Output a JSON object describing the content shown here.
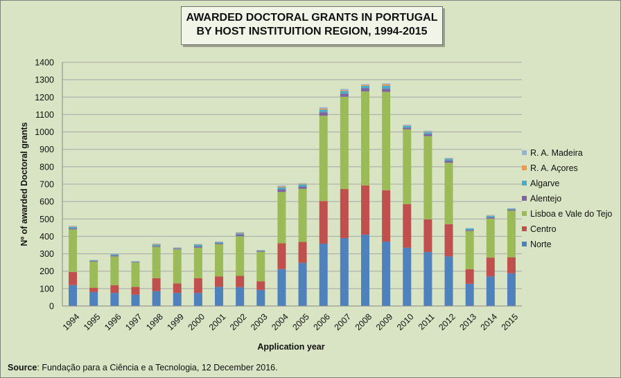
{
  "chart_data": {
    "type": "bar",
    "stacked": true,
    "title": [
      "AWARDED DOCTORAL GRANTS IN PORTUGAL",
      "BY HOST INSTITUITION REGION, 1994-2015"
    ],
    "xlabel": "Application year",
    "ylabel": "Nº of awarded Doctoral grants",
    "ylim": [
      0,
      1400
    ],
    "yticks": [
      0,
      100,
      200,
      300,
      400,
      500,
      600,
      700,
      800,
      900,
      1000,
      1100,
      1200,
      1300,
      1400
    ],
    "grid": true,
    "legend_position": "right",
    "categories": [
      "1994",
      "1995",
      "1996",
      "1997",
      "1998",
      "1999",
      "2000",
      "2001",
      "2002",
      "2003",
      "2004",
      "2005",
      "2006",
      "2007",
      "2008",
      "2009",
      "2010",
      "2011",
      "2012",
      "2013",
      "2014",
      "2015"
    ],
    "series": [
      {
        "name": "Norte",
        "color": "#4f81bd",
        "values": [
          120,
          80,
          75,
          65,
          85,
          75,
          75,
          110,
          108,
          92,
          212,
          248,
          358,
          390,
          410,
          370,
          335,
          310,
          285,
          128,
          170,
          188
        ]
      },
      {
        "name": "Centro",
        "color": "#c0504d",
        "values": [
          75,
          25,
          45,
          45,
          75,
          55,
          85,
          60,
          65,
          50,
          148,
          120,
          245,
          282,
          283,
          295,
          250,
          188,
          185,
          83,
          108,
          92
        ]
      },
      {
        "name": "Lisboa e Vale do Tejo",
        "color": "#9bbb59",
        "values": [
          245,
          150,
          165,
          140,
          180,
          195,
          175,
          185,
          228,
          170,
          295,
          305,
          490,
          530,
          540,
          565,
          430,
          478,
          353,
          220,
          224,
          268
        ]
      },
      {
        "name": "Alentejo",
        "color": "#8064a2",
        "values": [
          6,
          4,
          6,
          3,
          5,
          4,
          7,
          5,
          10,
          4,
          15,
          13,
          20,
          18,
          18,
          18,
          10,
          12,
          12,
          6,
          8,
          6
        ]
      },
      {
        "name": "Algarve",
        "color": "#4bacc6",
        "values": [
          9,
          4,
          6,
          3,
          8,
          4,
          10,
          7,
          8,
          3,
          12,
          13,
          15,
          15,
          14,
          18,
          10,
          10,
          10,
          8,
          8,
          5
        ]
      },
      {
        "name": "R. A. Açores",
        "color": "#f79646",
        "values": [
          3,
          1,
          1,
          1,
          3,
          2,
          2,
          2,
          3,
          1,
          5,
          4,
          6,
          5,
          5,
          7,
          2,
          3,
          2,
          1,
          2,
          1
        ]
      },
      {
        "name": "R. A. Madeira",
        "color": "#95b3d7",
        "values": [
          2,
          1,
          2,
          1,
          3,
          2,
          2,
          2,
          3,
          2,
          5,
          3,
          8,
          7,
          5,
          6,
          5,
          6,
          4,
          2,
          3,
          2
        ]
      }
    ],
    "legend_order": [
      "R. A. Madeira",
      "R. A. Açores",
      "Algarve",
      "Alentejo",
      "Lisboa e Vale do Tejo",
      "Centro",
      "Norte"
    ]
  },
  "source": {
    "label": "Source",
    "text": ": Fundação para a Ciência e a Tecnologia, 12 December 2016."
  },
  "colors": {
    "background": "#d9e4c4",
    "gridline": "#a6a6a6",
    "title_box": "#f1f5e8"
  }
}
